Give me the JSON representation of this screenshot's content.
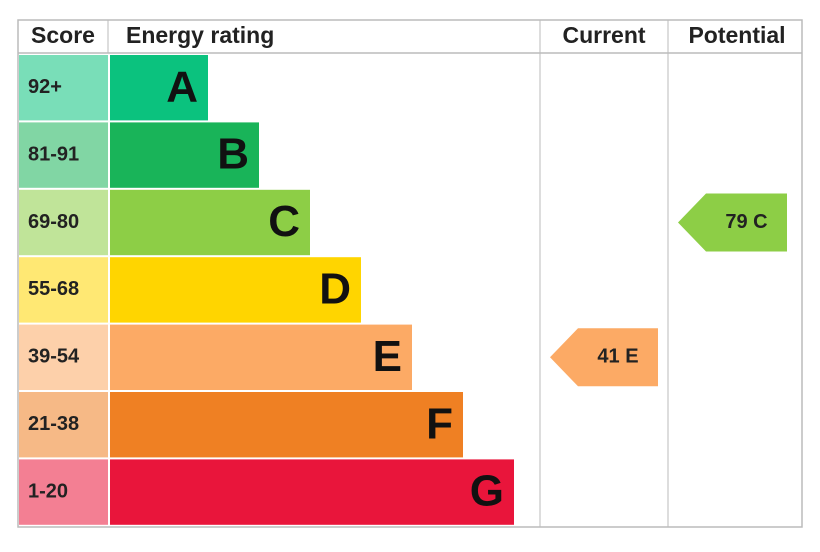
{
  "header": {
    "score": "Score",
    "rating": "Energy rating",
    "current": "Current",
    "potential": "Potential"
  },
  "bands": [
    {
      "score": "92+",
      "letter": "A",
      "color": "#0bc27e"
    },
    {
      "score": "81-91",
      "letter": "B",
      "color": "#19b459"
    },
    {
      "score": "69-80",
      "letter": "C",
      "color": "#8dce46"
    },
    {
      "score": "55-68",
      "letter": "D",
      "color": "#ffd500"
    },
    {
      "score": "39-54",
      "letter": "E",
      "color": "#fcaa65"
    },
    {
      "score": "21-38",
      "letter": "F",
      "color": "#ef8023"
    },
    {
      "score": "1-20",
      "letter": "G",
      "color": "#e9153b"
    }
  ],
  "current": {
    "label": "41 E",
    "letter": "E"
  },
  "potential": {
    "label": "79 C",
    "letter": "C"
  }
}
